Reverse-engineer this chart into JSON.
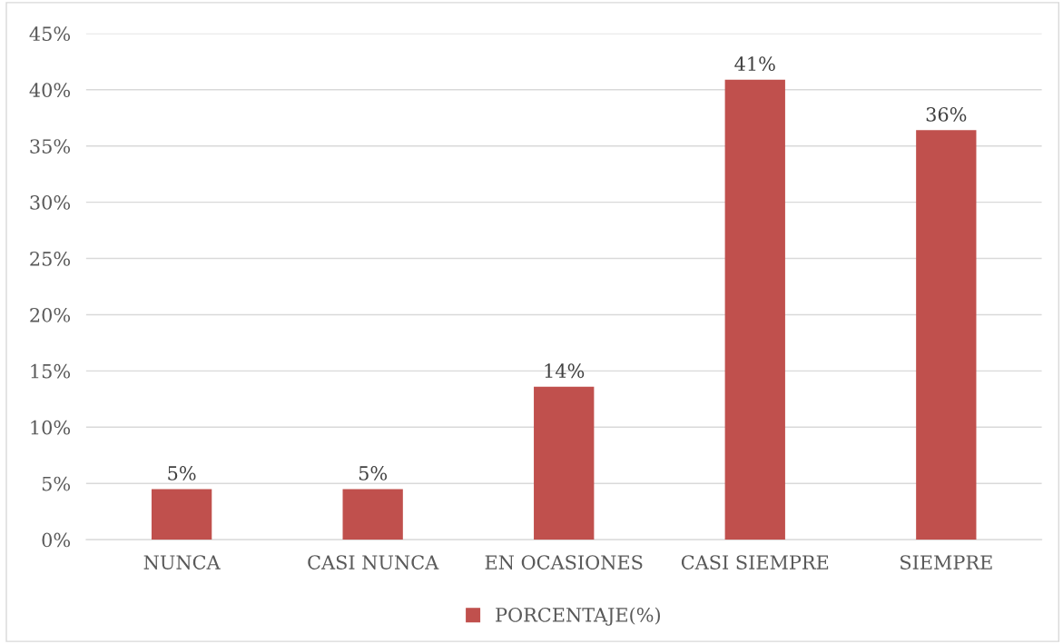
{
  "chart_data": {
    "type": "bar",
    "categories": [
      "NUNCA",
      "CASI NUNCA",
      "EN OCASIONES",
      "CASI SIEMPRE",
      "SIEMPRE"
    ],
    "series": [
      {
        "name": "PORCENTAJE(%)",
        "color": "#c0504d",
        "values": [
          4.5,
          4.5,
          13.6,
          40.9,
          36.4
        ],
        "value_labels": [
          "5%",
          "5%",
          "14%",
          "41%",
          "36%"
        ]
      }
    ],
    "ylim": [
      0,
      45
    ],
    "yticks": [
      {
        "value": 0,
        "label": "0%"
      },
      {
        "value": 5,
        "label": "5%"
      },
      {
        "value": 10,
        "label": "10%"
      },
      {
        "value": 15,
        "label": "15%"
      },
      {
        "value": 20,
        "label": "20%"
      },
      {
        "value": 25,
        "label": "25%"
      },
      {
        "value": 30,
        "label": "30%"
      },
      {
        "value": 35,
        "label": "35%"
      },
      {
        "value": 40,
        "label": "40%"
      },
      {
        "value": 45,
        "label": "45%"
      }
    ],
    "grid": "y",
    "legend": "bottom"
  }
}
